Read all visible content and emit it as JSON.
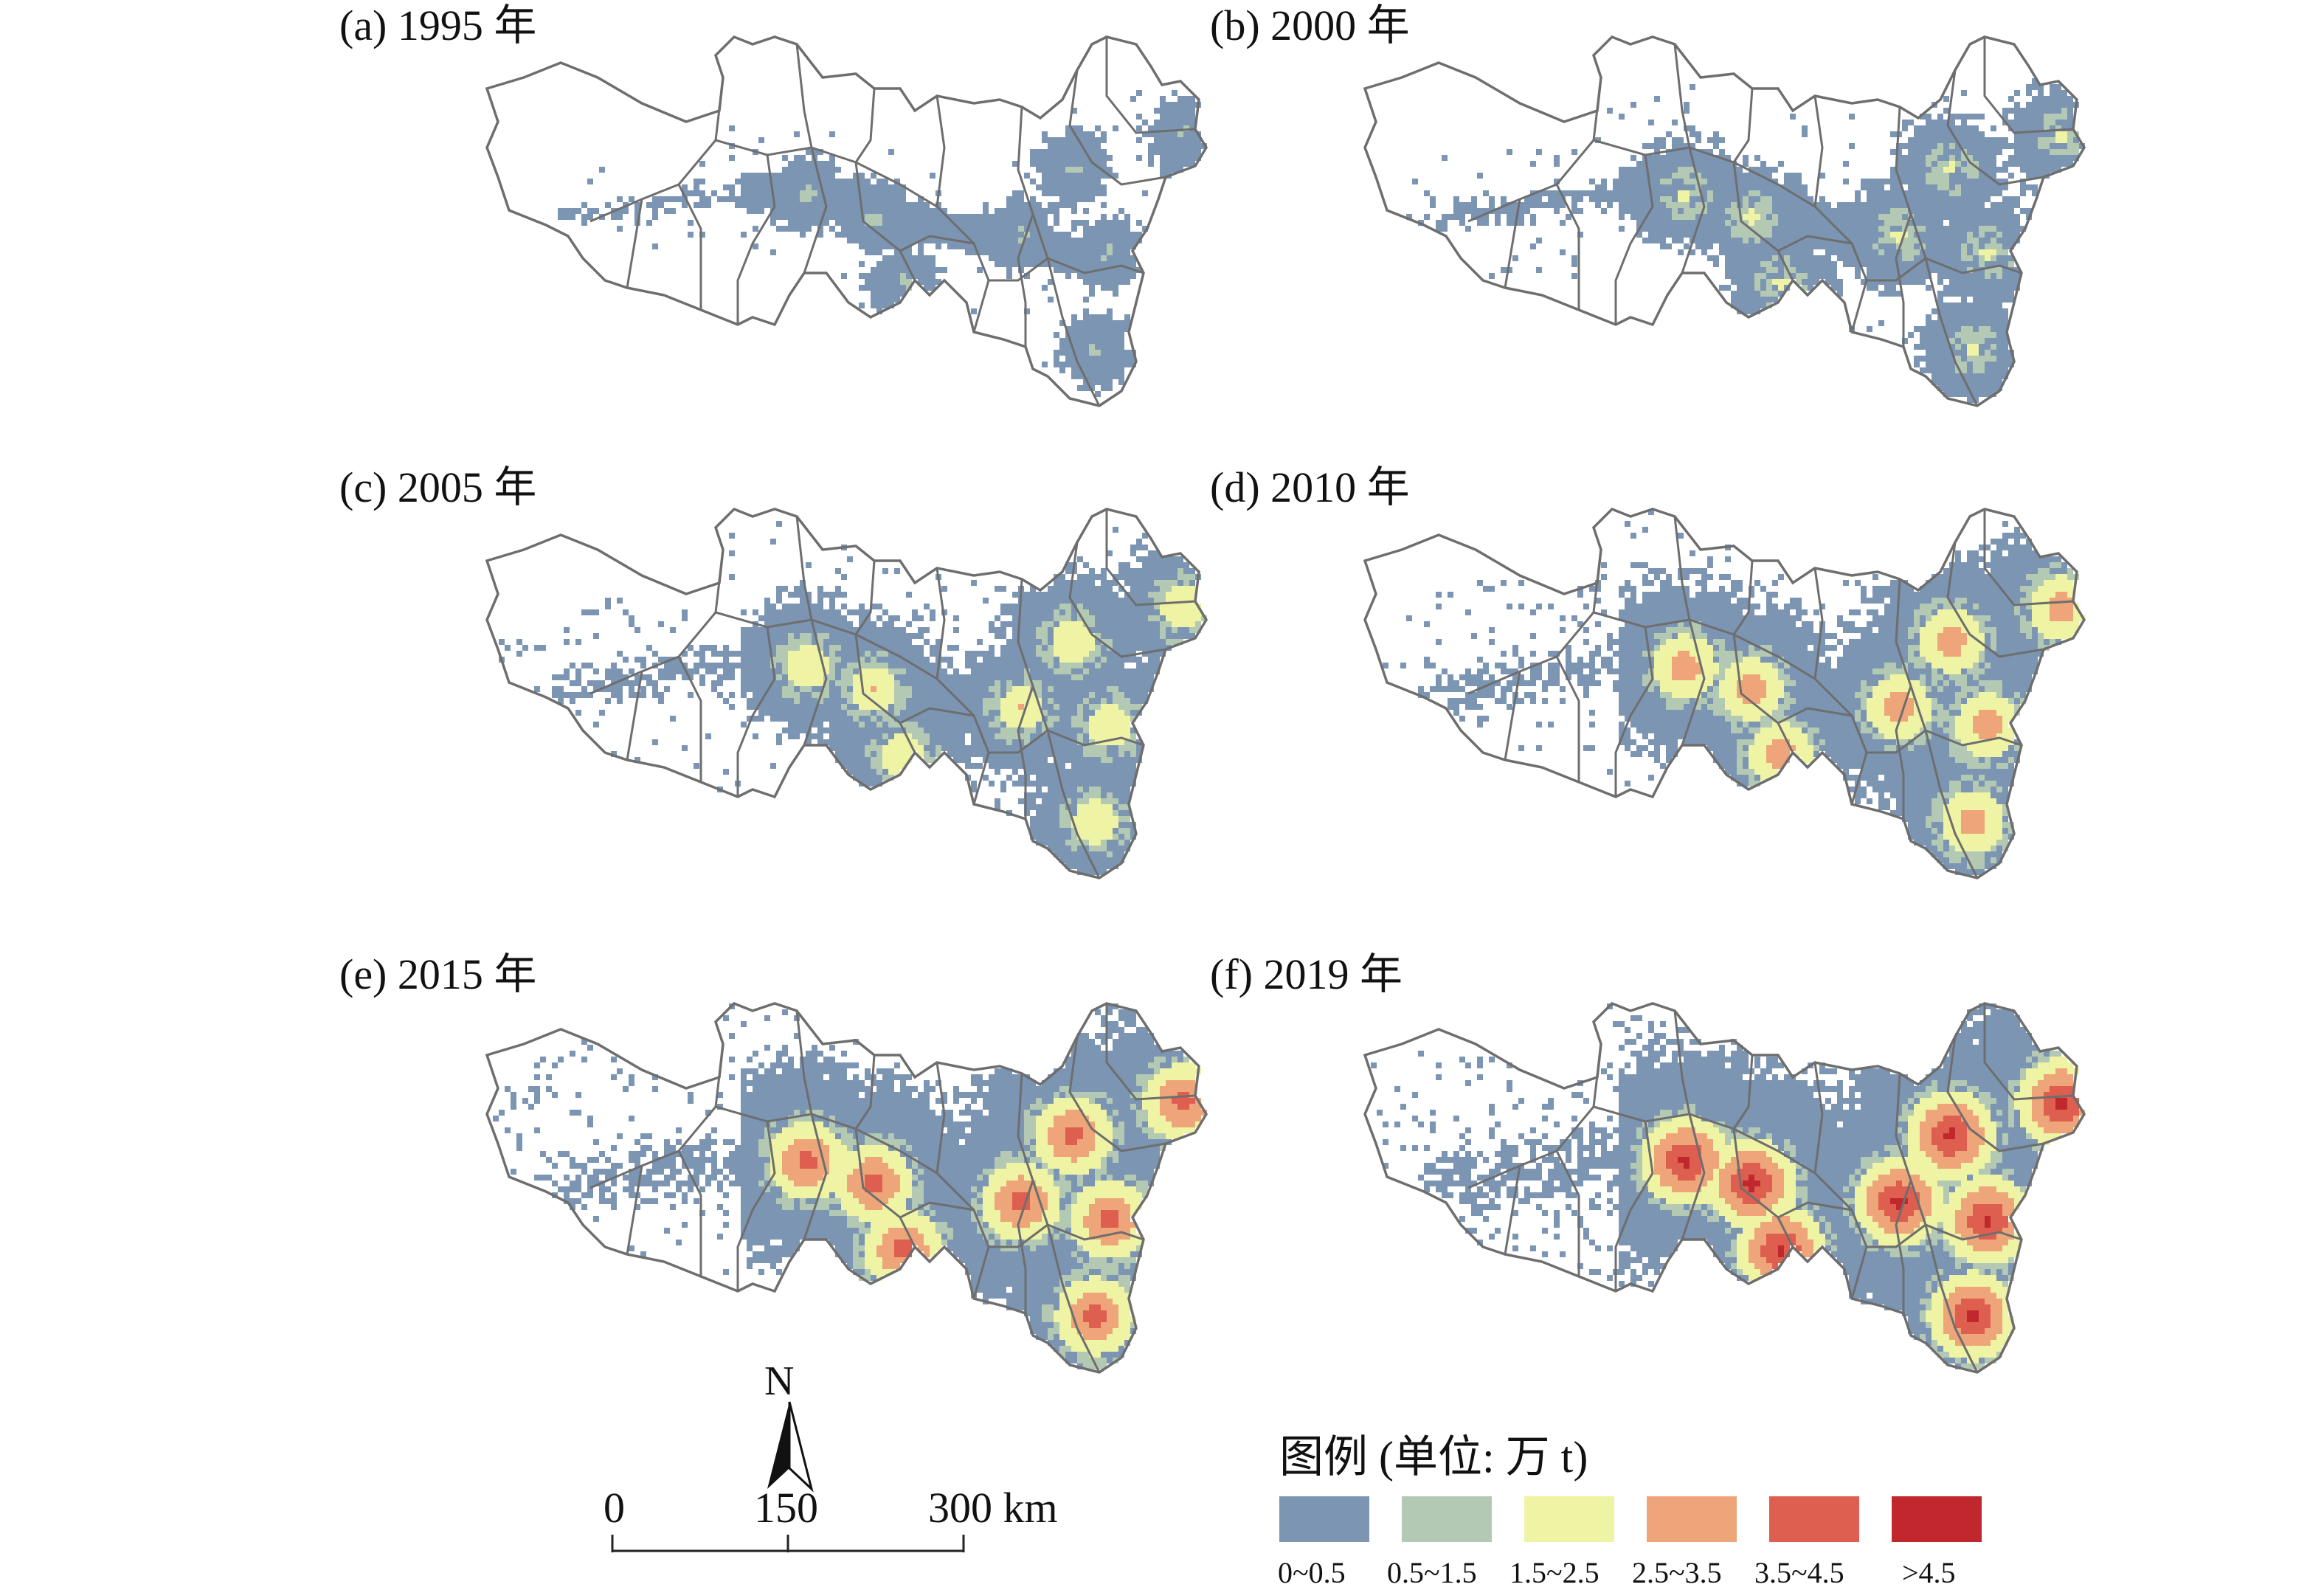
{
  "panels": [
    {
      "id": "a",
      "title": "(a) 1995 年",
      "level": 1
    },
    {
      "id": "b",
      "title": "(b) 2000 年",
      "level": 2
    },
    {
      "id": "c",
      "title": "(c) 2005 年",
      "level": 3
    },
    {
      "id": "d",
      "title": "(d) 2010 年",
      "level": 4
    },
    {
      "id": "e",
      "title": "(e) 2015 年",
      "level": 5
    },
    {
      "id": "f",
      "title": "(f) 2019 年",
      "level": 6
    }
  ],
  "north_arrow": {
    "letter": "N"
  },
  "scale_bar": {
    "labels": [
      "0",
      "150",
      "300 km"
    ]
  },
  "legend": {
    "title": "图例 (单位: 万 t)",
    "classes": [
      {
        "label": "0~0.5",
        "color": "#7b95b3"
      },
      {
        "label": "0.5~1.5",
        "color": "#b3c9b4"
      },
      {
        "label": "1.5~2.5",
        "color": "#eff3a4"
      },
      {
        "label": "2.5~3.5",
        "color": "#eea57a"
      },
      {
        "label": "3.5~4.5",
        "color": "#de5f4f"
      },
      {
        "label": ">4.5",
        "color": "#c0282d"
      }
    ]
  },
  "colors": {
    "boundary": "#6e6e6e",
    "land": "#ffffff"
  }
}
